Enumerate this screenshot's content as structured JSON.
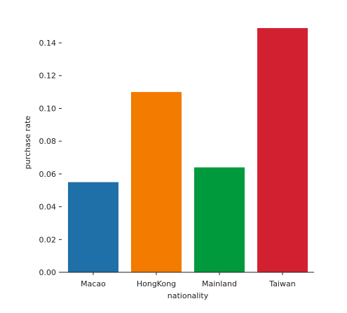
{
  "chart_data": {
    "type": "bar",
    "title": "",
    "xlabel": "nationality",
    "ylabel": "purchase rate",
    "categories": [
      "Macao",
      "HongKong",
      "Mainland",
      "Taiwan"
    ],
    "values": [
      0.055,
      0.11,
      0.064,
      0.149
    ],
    "colors": [
      "#1f6fa8",
      "#f27b00",
      "#009a3c",
      "#d32030"
    ],
    "ylim": [
      0,
      0.155
    ],
    "yticks": [
      0.0,
      0.02,
      0.04,
      0.06,
      0.08,
      0.1,
      0.12,
      0.14
    ],
    "ytick_labels": [
      "0.00",
      "0.02",
      "0.04",
      "0.06",
      "0.08",
      "0.10",
      "0.12",
      "0.14"
    ],
    "grid": false,
    "legend": "none"
  }
}
